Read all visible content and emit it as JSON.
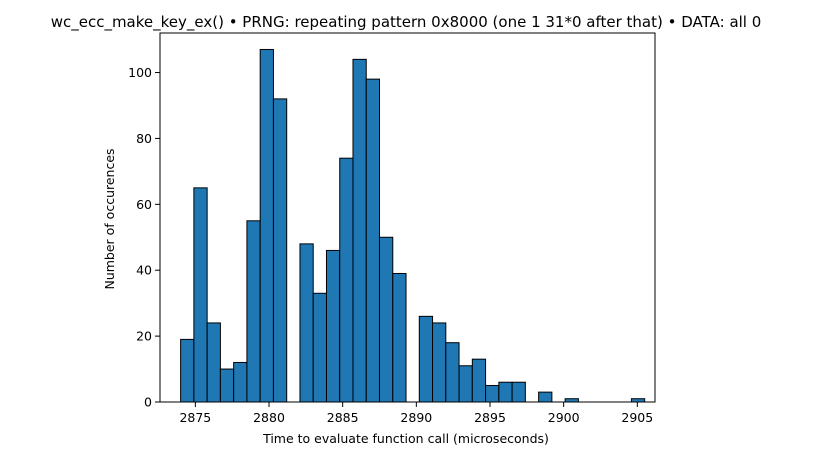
{
  "chart_data": {
    "type": "bar",
    "title": "wc_ecc_make_key_ex() • PRNG: repeating pattern 0x8000 (one 1 31*0 after that) • DATA: all 0",
    "xlabel": "Time to evaluate function call (microseconds)",
    "ylabel": "Number of occurences",
    "xlim": [
      2872.6,
      2906.2
    ],
    "ylim": [
      0,
      112
    ],
    "xticks": [
      2875,
      2880,
      2885,
      2890,
      2895,
      2900,
      2905
    ],
    "yticks": [
      0,
      20,
      40,
      60,
      80,
      100
    ],
    "bar_color": "#1f77b4",
    "edge_color": "#000000",
    "bins": [
      {
        "x0": 2874.0,
        "x1": 2874.9,
        "count": 19
      },
      {
        "x0": 2874.9,
        "x1": 2875.8,
        "count": 65
      },
      {
        "x0": 2875.8,
        "x1": 2876.7,
        "count": 24
      },
      {
        "x0": 2876.7,
        "x1": 2877.6,
        "count": 10
      },
      {
        "x0": 2877.6,
        "x1": 2878.5,
        "count": 12
      },
      {
        "x0": 2878.5,
        "x1": 2879.4,
        "count": 55
      },
      {
        "x0": 2879.4,
        "x1": 2880.3,
        "count": 107
      },
      {
        "x0": 2880.3,
        "x1": 2881.2,
        "count": 92
      },
      {
        "x0": 2881.2,
        "x1": 2882.1,
        "count": 0
      },
      {
        "x0": 2882.1,
        "x1": 2883.0,
        "count": 48
      },
      {
        "x0": 2883.0,
        "x1": 2883.9,
        "count": 33
      },
      {
        "x0": 2883.9,
        "x1": 2884.8,
        "count": 46
      },
      {
        "x0": 2884.8,
        "x1": 2885.7,
        "count": 74
      },
      {
        "x0": 2885.7,
        "x1": 2886.6,
        "count": 104
      },
      {
        "x0": 2886.6,
        "x1": 2887.5,
        "count": 98
      },
      {
        "x0": 2887.5,
        "x1": 2888.4,
        "count": 50
      },
      {
        "x0": 2888.4,
        "x1": 2889.3,
        "count": 39
      },
      {
        "x0": 2889.3,
        "x1": 2890.2,
        "count": 0
      },
      {
        "x0": 2890.2,
        "x1": 2891.1,
        "count": 26
      },
      {
        "x0": 2891.1,
        "x1": 2892.0,
        "count": 24
      },
      {
        "x0": 2892.0,
        "x1": 2892.9,
        "count": 18
      },
      {
        "x0": 2892.9,
        "x1": 2893.8,
        "count": 11
      },
      {
        "x0": 2893.8,
        "x1": 2894.7,
        "count": 13
      },
      {
        "x0": 2894.7,
        "x1": 2895.6,
        "count": 5
      },
      {
        "x0": 2895.6,
        "x1": 2896.5,
        "count": 6
      },
      {
        "x0": 2896.5,
        "x1": 2897.4,
        "count": 6
      },
      {
        "x0": 2897.4,
        "x1": 2898.3,
        "count": 0
      },
      {
        "x0": 2898.3,
        "x1": 2899.2,
        "count": 3
      },
      {
        "x0": 2899.2,
        "x1": 2900.1,
        "count": 0
      },
      {
        "x0": 2900.1,
        "x1": 2901.0,
        "count": 1
      },
      {
        "x0": 2901.0,
        "x1": 2901.9,
        "count": 0
      },
      {
        "x0": 2901.9,
        "x1": 2902.8,
        "count": 0
      },
      {
        "x0": 2902.8,
        "x1": 2903.7,
        "count": 0
      },
      {
        "x0": 2903.7,
        "x1": 2904.6,
        "count": 0
      },
      {
        "x0": 2904.6,
        "x1": 2905.5,
        "count": 1
      }
    ],
    "grid": false,
    "legend": "none"
  }
}
